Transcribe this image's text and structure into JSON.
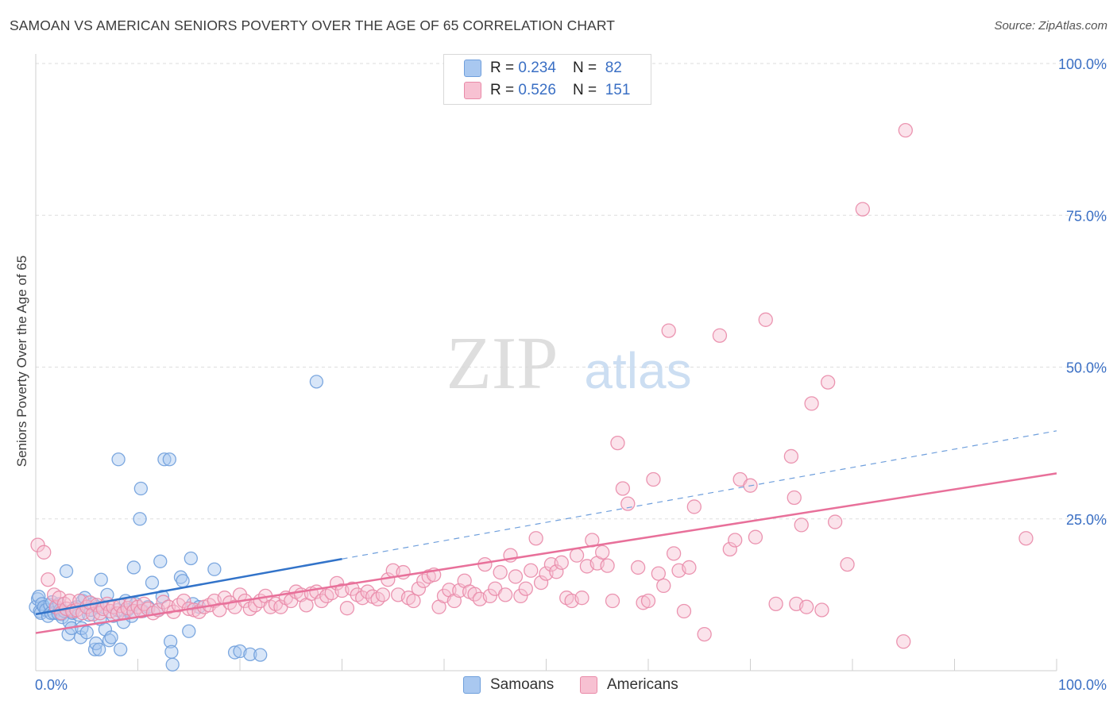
{
  "title": "SAMOAN VS AMERICAN SENIORS POVERTY OVER THE AGE OF 65 CORRELATION CHART",
  "source": "Source: ZipAtlas.com",
  "watermark": {
    "zip": "ZIP",
    "atlas": "atlas"
  },
  "legend_top": [
    {
      "r_label": "R = ",
      "r_value": "0.234",
      "n_label": "N = ",
      "n_value": "82",
      "color": "#a9c8f0",
      "border": "#6f9fdc"
    },
    {
      "r_label": "R = ",
      "r_value": "0.526",
      "n_label": "N = ",
      "n_value": "151",
      "color": "#f7c1d2",
      "border": "#e98aa8"
    }
  ],
  "legend_bottom": [
    {
      "label": "Samoans",
      "color": "#a9c8f0",
      "border": "#6f9fdc"
    },
    {
      "label": "Americans",
      "color": "#f7c1d2",
      "border": "#e98aa8"
    }
  ],
  "chart_data": {
    "type": "scatter",
    "title": "SAMOAN VS AMERICAN SENIORS POVERTY OVER THE AGE OF 65 CORRELATION CHART",
    "xlabel": "",
    "ylabel": "Seniors Poverty Over the Age of 65",
    "xlim": [
      0,
      100
    ],
    "ylim": [
      0,
      100
    ],
    "x_tick_labels": [
      "0.0%",
      "100.0%"
    ],
    "y_tick_labels": [
      "100.0%",
      "75.0%",
      "50.0%",
      "25.0%"
    ],
    "y_tick_values": [
      100,
      75,
      50,
      25
    ],
    "grid": "horizontal dashed",
    "legend_position": "top-center",
    "series": [
      {
        "name": "Samoans",
        "color": "#6f9fdc",
        "fill": "#a9c8f0",
        "R": 0.234,
        "N": 82,
        "trend": {
          "x0": 0,
          "y0": 9.3,
          "x1": 30,
          "y1": 18.4,
          "x_end": 100,
          "y_end": 39.5
        },
        "points": [
          [
            0,
            10.5
          ],
          [
            0.2,
            11.8
          ],
          [
            0.3,
            12.2
          ],
          [
            0.4,
            9.8
          ],
          [
            0.5,
            9.5
          ],
          [
            0.6,
            11
          ],
          [
            0.8,
            10.5
          ],
          [
            1,
            10
          ],
          [
            1.2,
            9
          ],
          [
            1.4,
            10.8
          ],
          [
            1.5,
            9.5
          ],
          [
            1.6,
            11.3
          ],
          [
            1.8,
            9.5
          ],
          [
            2,
            10.3
          ],
          [
            2.2,
            9.4
          ],
          [
            2.3,
            11
          ],
          [
            2.4,
            10
          ],
          [
            2.5,
            9.3
          ],
          [
            2.6,
            8.8
          ],
          [
            2.8,
            9.8
          ],
          [
            3,
            16.4
          ],
          [
            3.2,
            6
          ],
          [
            3.3,
            8
          ],
          [
            3.5,
            7
          ],
          [
            3.6,
            9.5
          ],
          [
            3.8,
            10.3
          ],
          [
            4,
            10.5
          ],
          [
            4.2,
            9.2
          ],
          [
            4.4,
            5.5
          ],
          [
            4.5,
            7
          ],
          [
            4.6,
            11.5
          ],
          [
            4.8,
            12
          ],
          [
            5,
            6.3
          ],
          [
            5.2,
            9.2
          ],
          [
            5.4,
            10
          ],
          [
            5.6,
            11
          ],
          [
            5.8,
            3.5
          ],
          [
            5.9,
            4.5
          ],
          [
            6,
            10.5
          ],
          [
            6.2,
            3.5
          ],
          [
            6.3,
            8.5
          ],
          [
            6.4,
            15
          ],
          [
            6.6,
            10.5
          ],
          [
            6.8,
            6.8
          ],
          [
            7,
            12.5
          ],
          [
            7.2,
            5
          ],
          [
            7.4,
            5.5
          ],
          [
            7.6,
            9
          ],
          [
            8,
            10
          ],
          [
            8.1,
            34.8
          ],
          [
            8.3,
            3.5
          ],
          [
            8.6,
            8
          ],
          [
            8.8,
            11.5
          ],
          [
            9,
            10
          ],
          [
            9.4,
            9
          ],
          [
            9.6,
            17
          ],
          [
            9.8,
            11
          ],
          [
            10.2,
            25
          ],
          [
            10.3,
            30
          ],
          [
            10.5,
            9.8
          ],
          [
            11,
            10.5
          ],
          [
            11.4,
            14.5
          ],
          [
            12,
            10
          ],
          [
            12.2,
            18
          ],
          [
            12.4,
            12.2
          ],
          [
            12.6,
            34.8
          ],
          [
            13.1,
            34.8
          ],
          [
            13.4,
            1
          ],
          [
            13.2,
            4.8
          ],
          [
            13.3,
            3.1
          ],
          [
            14.2,
            15.4
          ],
          [
            14.4,
            14.8
          ],
          [
            15,
            6.5
          ],
          [
            15.2,
            18.5
          ],
          [
            15.4,
            11
          ],
          [
            16,
            10.5
          ],
          [
            17.5,
            16.7
          ],
          [
            19.5,
            3
          ],
          [
            20,
            3.2
          ],
          [
            21,
            2.7
          ],
          [
            22,
            2.6
          ],
          [
            27.5,
            47.6
          ]
        ]
      },
      {
        "name": "Americans",
        "color": "#e98aa8",
        "fill": "#f7c1d2",
        "R": 0.526,
        "N": 151,
        "trend": {
          "x0": 0,
          "y0": 6.2,
          "x1": 100,
          "y1": 32.5
        },
        "points": [
          [
            0.2,
            20.7
          ],
          [
            0.8,
            19.5
          ],
          [
            1.2,
            15
          ],
          [
            1.8,
            12.5
          ],
          [
            2,
            10.5
          ],
          [
            2.3,
            12
          ],
          [
            2.5,
            9.5
          ],
          [
            2.8,
            11
          ],
          [
            3,
            10.2
          ],
          [
            3.3,
            11.5
          ],
          [
            3.6,
            9.8
          ],
          [
            4,
            10
          ],
          [
            4.3,
            11.5
          ],
          [
            4.6,
            9.5
          ],
          [
            5,
            10.5
          ],
          [
            5.3,
            11.2
          ],
          [
            5.6,
            9.3
          ],
          [
            6,
            10.8
          ],
          [
            6.3,
            9.5
          ],
          [
            6.6,
            10.2
          ],
          [
            7,
            11
          ],
          [
            7.3,
            9.8
          ],
          [
            7.6,
            10.5
          ],
          [
            8,
            9.4
          ],
          [
            8.3,
            10.7
          ],
          [
            8.6,
            9.5
          ],
          [
            9,
            10.3
          ],
          [
            9.3,
            11
          ],
          [
            9.6,
            9.8
          ],
          [
            10,
            10.5
          ],
          [
            10.3,
            9.8
          ],
          [
            10.6,
            11
          ],
          [
            11,
            10.2
          ],
          [
            11.5,
            9.5
          ],
          [
            12,
            10
          ],
          [
            12.5,
            11.3
          ],
          [
            13,
            10.5
          ],
          [
            13.5,
            9.7
          ],
          [
            14,
            10.8
          ],
          [
            14.5,
            11.5
          ],
          [
            15,
            10.2
          ],
          [
            15.5,
            10
          ],
          [
            16,
            9.7
          ],
          [
            16.5,
            10.5
          ],
          [
            17,
            10.8
          ],
          [
            17.5,
            11.5
          ],
          [
            18,
            10
          ],
          [
            18.5,
            12
          ],
          [
            19,
            11.2
          ],
          [
            19.5,
            10.5
          ],
          [
            20,
            12.5
          ],
          [
            20.5,
            11.5
          ],
          [
            21,
            10.2
          ],
          [
            21.5,
            10.8
          ],
          [
            22,
            11.5
          ],
          [
            22.5,
            12.3
          ],
          [
            23,
            10.5
          ],
          [
            23.5,
            11
          ],
          [
            24,
            10.5
          ],
          [
            24.5,
            12
          ],
          [
            25,
            11.5
          ],
          [
            25.5,
            13
          ],
          [
            26,
            12.5
          ],
          [
            26.5,
            10.8
          ],
          [
            27,
            12.7
          ],
          [
            27.5,
            13
          ],
          [
            28,
            11.5
          ],
          [
            28.5,
            12.3
          ],
          [
            29,
            12.8
          ],
          [
            29.5,
            14.4
          ],
          [
            30,
            13.2
          ],
          [
            30.5,
            10.3
          ],
          [
            31,
            13.5
          ],
          [
            31.5,
            12.5
          ],
          [
            32,
            12
          ],
          [
            32.5,
            13
          ],
          [
            33,
            12.2
          ],
          [
            33.5,
            11.8
          ],
          [
            34,
            12.5
          ],
          [
            34.5,
            15
          ],
          [
            35,
            16.5
          ],
          [
            35.5,
            12.5
          ],
          [
            36,
            16.2
          ],
          [
            36.5,
            12
          ],
          [
            37,
            11.5
          ],
          [
            37.5,
            13.5
          ],
          [
            38,
            14.8
          ],
          [
            38.5,
            15.5
          ],
          [
            39,
            15.8
          ],
          [
            39.5,
            10.5
          ],
          [
            40,
            12.3
          ],
          [
            40.5,
            13.3
          ],
          [
            41,
            11.5
          ],
          [
            41.5,
            13.2
          ],
          [
            42,
            14.8
          ],
          [
            42.5,
            13
          ],
          [
            43,
            12.6
          ],
          [
            43.5,
            11.8
          ],
          [
            44,
            17.5
          ],
          [
            44.5,
            12.3
          ],
          [
            45,
            13.5
          ],
          [
            45.5,
            16.2
          ],
          [
            46,
            12.5
          ],
          [
            46.5,
            19
          ],
          [
            47,
            15.5
          ],
          [
            47.5,
            12.3
          ],
          [
            48,
            13.5
          ],
          [
            48.5,
            16.5
          ],
          [
            49,
            21.8
          ],
          [
            49.5,
            14.5
          ],
          [
            50,
            16
          ],
          [
            50.5,
            17.5
          ],
          [
            51,
            16.3
          ],
          [
            51.5,
            17.8
          ],
          [
            52,
            12
          ],
          [
            52.5,
            11.5
          ],
          [
            53,
            19
          ],
          [
            53.5,
            12
          ],
          [
            54,
            17.2
          ],
          [
            54.5,
            21.5
          ],
          [
            55,
            17.7
          ],
          [
            55.5,
            19.5
          ],
          [
            56,
            17.3
          ],
          [
            56.5,
            11.5
          ],
          [
            57,
            37.5
          ],
          [
            57.5,
            30
          ],
          [
            58,
            27.5
          ],
          [
            59,
            17
          ],
          [
            59.5,
            11.2
          ],
          [
            60,
            11.5
          ],
          [
            60.5,
            31.5
          ],
          [
            61,
            16
          ],
          [
            61.5,
            14
          ],
          [
            62,
            56
          ],
          [
            62.5,
            19.3
          ],
          [
            63,
            16.5
          ],
          [
            63.5,
            9.8
          ],
          [
            64,
            17
          ],
          [
            64.5,
            27
          ],
          [
            65.5,
            6
          ],
          [
            67,
            55.2
          ],
          [
            68,
            20
          ],
          [
            68.5,
            21.5
          ],
          [
            69,
            31.5
          ],
          [
            70,
            30.5
          ],
          [
            70.5,
            22
          ],
          [
            71.5,
            57.8
          ],
          [
            72.5,
            11
          ],
          [
            74.5,
            11
          ],
          [
            75.5,
            10.5
          ],
          [
            74.3,
            28.5
          ],
          [
            74,
            35.3
          ],
          [
            75,
            24
          ],
          [
            76,
            44
          ],
          [
            77,
            10
          ],
          [
            77.6,
            47.5
          ],
          [
            78.3,
            24.5
          ],
          [
            79.5,
            17.5
          ],
          [
            81,
            76
          ],
          [
            85,
            4.8
          ],
          [
            85.2,
            89
          ],
          [
            97,
            21.8
          ]
        ]
      }
    ]
  }
}
